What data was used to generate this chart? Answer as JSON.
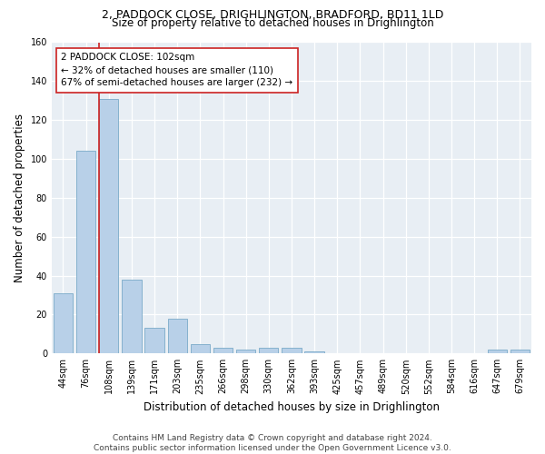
{
  "title1": "2, PADDOCK CLOSE, DRIGHLINGTON, BRADFORD, BD11 1LD",
  "title2": "Size of property relative to detached houses in Drighlington",
  "xlabel": "Distribution of detached houses by size in Drighlington",
  "ylabel": "Number of detached properties",
  "categories": [
    "44sqm",
    "76sqm",
    "108sqm",
    "139sqm",
    "171sqm",
    "203sqm",
    "235sqm",
    "266sqm",
    "298sqm",
    "330sqm",
    "362sqm",
    "393sqm",
    "425sqm",
    "457sqm",
    "489sqm",
    "520sqm",
    "552sqm",
    "584sqm",
    "616sqm",
    "647sqm",
    "679sqm"
  ],
  "values": [
    31,
    104,
    131,
    38,
    13,
    18,
    5,
    3,
    2,
    3,
    3,
    1,
    0,
    0,
    0,
    0,
    0,
    0,
    0,
    2,
    2
  ],
  "bar_color": "#b8d0e8",
  "bar_edge_color": "#7aaac8",
  "ylim": [
    0,
    160
  ],
  "yticks": [
    0,
    20,
    40,
    60,
    80,
    100,
    120,
    140,
    160
  ],
  "property_label": "2 PADDOCK CLOSE: 102sqm",
  "annotation_line1": "← 32% of detached houses are smaller (110)",
  "annotation_line2": "67% of semi-detached houses are larger (232) →",
  "vline_color": "#cc2222",
  "annotation_box_color": "#ffffff",
  "annotation_box_edge": "#cc2222",
  "footer1": "Contains HM Land Registry data © Crown copyright and database right 2024.",
  "footer2": "Contains public sector information licensed under the Open Government Licence v3.0.",
  "bg_color": "#ffffff",
  "plot_bg_color": "#e8eef4",
  "title_fontsize": 9,
  "subtitle_fontsize": 8.5,
  "axis_label_fontsize": 8.5,
  "tick_fontsize": 7,
  "footer_fontsize": 6.5
}
